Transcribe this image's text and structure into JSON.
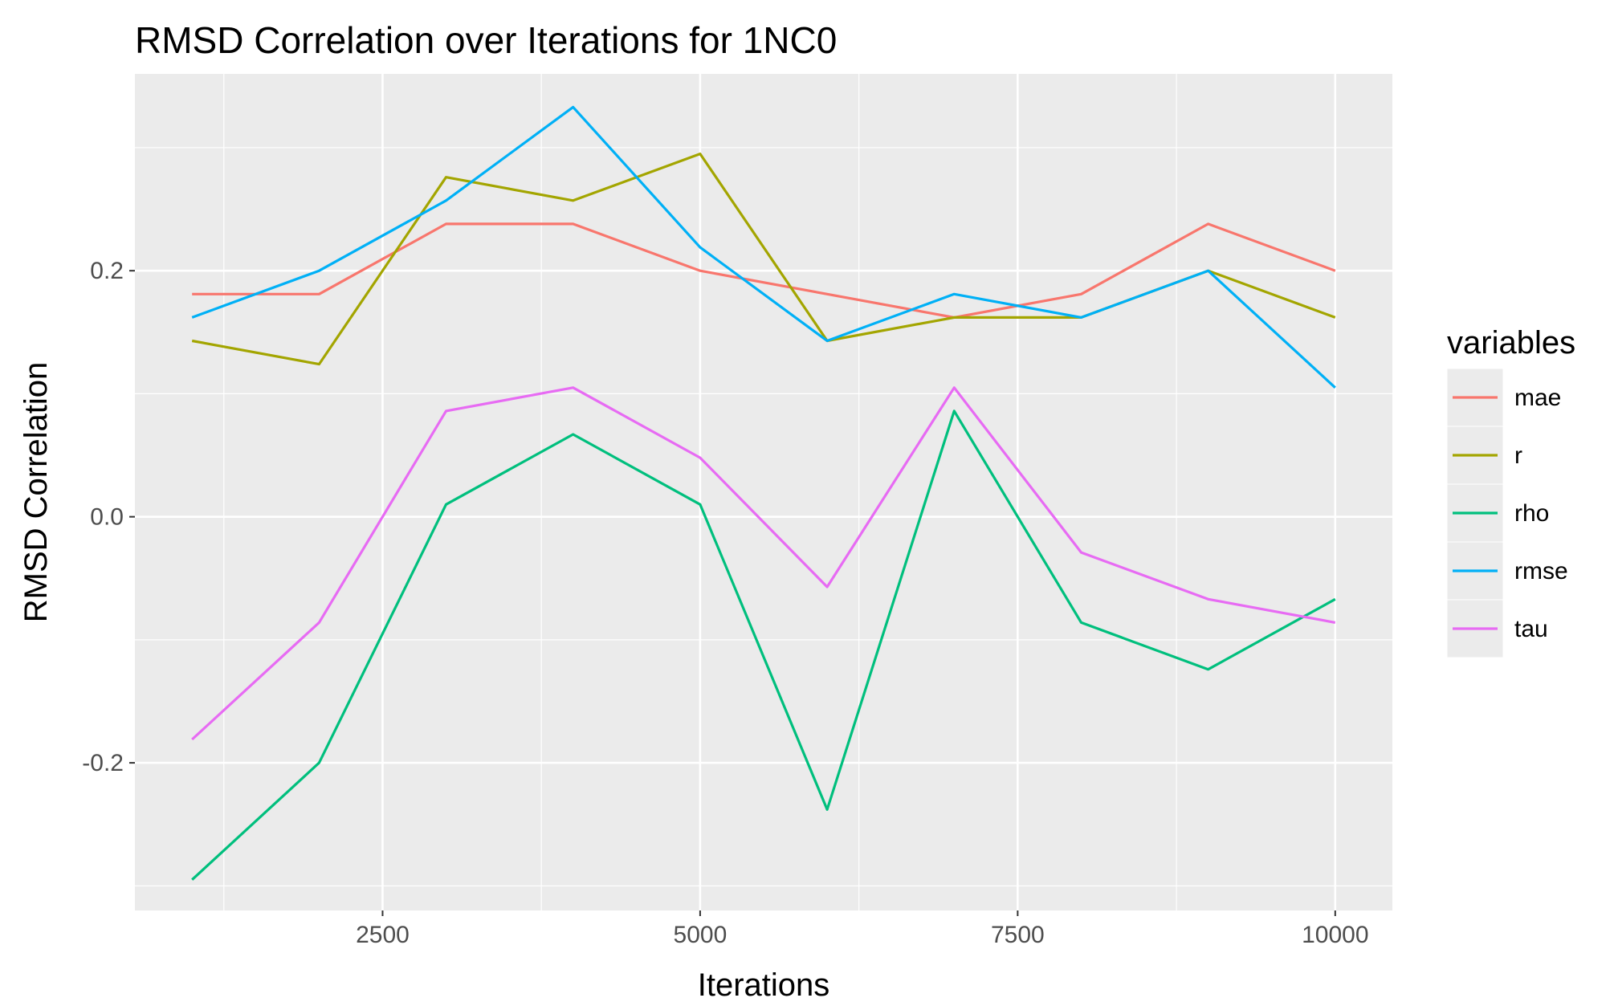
{
  "chart_data": {
    "type": "line",
    "title": "RMSD Correlation over Iterations for 1NC0",
    "xlabel": "Iterations",
    "ylabel": "RMSD Correlation",
    "xlim": [
      550,
      10450
    ],
    "ylim": [
      -0.32,
      0.36
    ],
    "x_ticks": [
      2500,
      5000,
      7500,
      10000
    ],
    "x_tick_labels": [
      "2500",
      "5000",
      "7500",
      "10000"
    ],
    "y_ticks": [
      -0.2,
      0.0,
      0.2
    ],
    "y_tick_labels": [
      "-0.2",
      "0.0",
      "0.2"
    ],
    "grid": true,
    "background_color": "#ebebeb",
    "legend": {
      "title": "variables",
      "position": "right"
    },
    "x": [
      1000,
      2000,
      3000,
      4000,
      5000,
      6000,
      7000,
      8000,
      9000,
      10000
    ],
    "series": [
      {
        "name": "mae",
        "color": "#f8766d",
        "values": [
          0.181,
          0.181,
          0.238,
          0.238,
          0.2,
          0.181,
          0.162,
          0.181,
          0.238,
          0.2
        ]
      },
      {
        "name": "r",
        "color": "#a3a500",
        "values": [
          0.143,
          0.124,
          0.276,
          0.257,
          0.295,
          0.143,
          0.162,
          0.162,
          0.2,
          0.162
        ]
      },
      {
        "name": "rho",
        "color": "#00bf7d",
        "values": [
          -0.295,
          -0.2,
          0.01,
          0.067,
          0.01,
          -0.238,
          0.086,
          -0.086,
          -0.124,
          -0.067
        ]
      },
      {
        "name": "rmse",
        "color": "#00b0f6",
        "values": [
          0.162,
          0.2,
          0.257,
          0.333,
          0.219,
          0.143,
          0.181,
          0.162,
          0.2,
          0.105
        ]
      },
      {
        "name": "tau",
        "color": "#e76bf3",
        "values": [
          -0.181,
          -0.086,
          0.086,
          0.105,
          0.048,
          -0.057,
          0.105,
          -0.029,
          -0.067,
          -0.086
        ]
      }
    ]
  }
}
